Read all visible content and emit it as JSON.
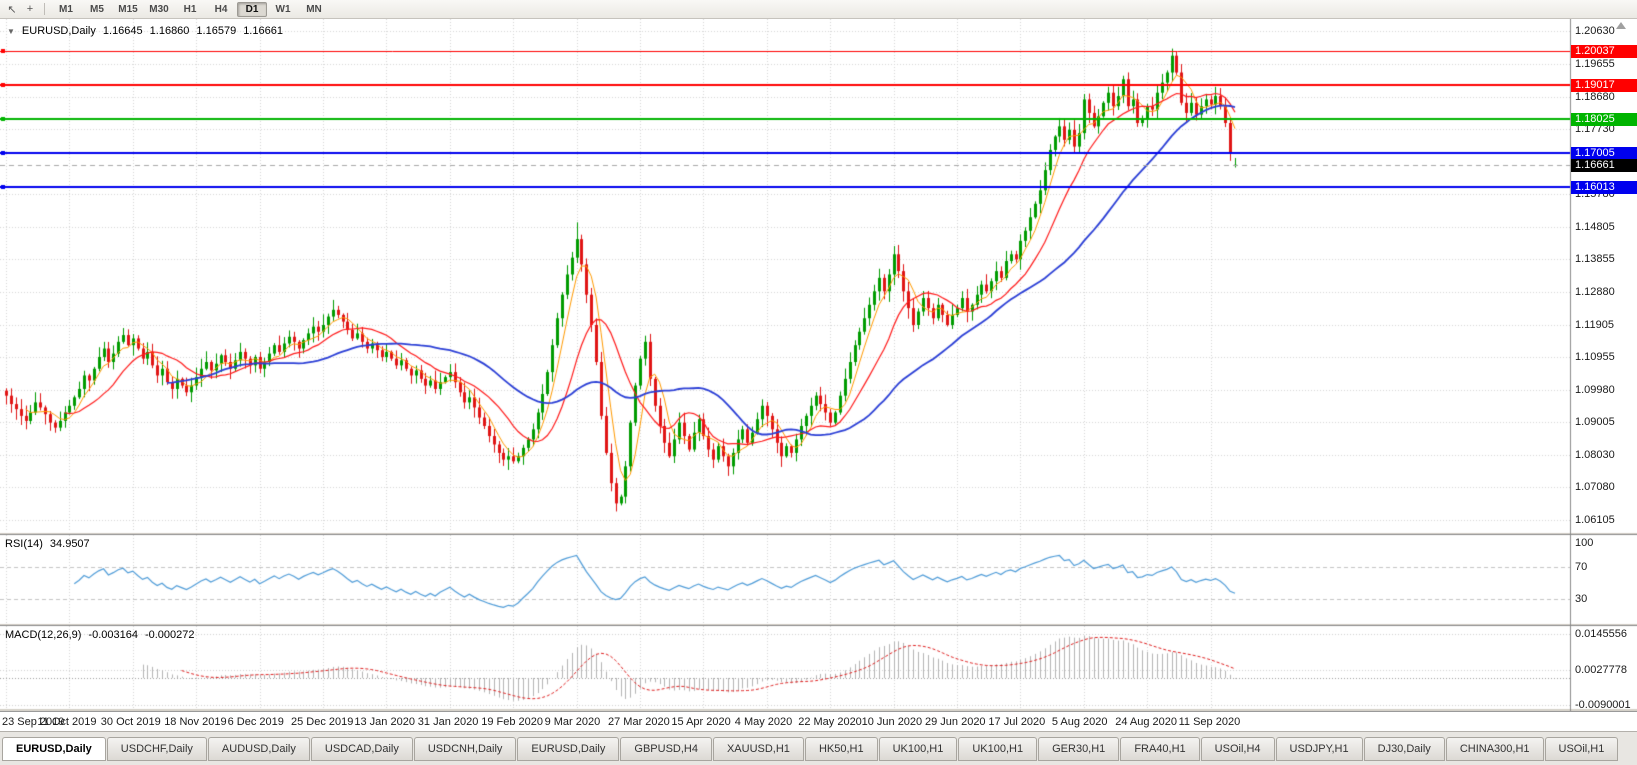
{
  "toolbar": {
    "icons": [
      {
        "name": "cursor",
        "glyph": "↖"
      },
      {
        "name": "crosshair",
        "glyph": "+"
      }
    ],
    "timeframes": [
      "M1",
      "M5",
      "M15",
      "M30",
      "H1",
      "H4",
      "D1",
      "W1",
      "MN"
    ],
    "active_timeframe": "D1"
  },
  "chart_info": {
    "collapse_arrow": "▼",
    "symbol_period": "EURUSD,Daily",
    "open": "1.16645",
    "high": "1.16860",
    "low": "1.16579",
    "close": "1.16661"
  },
  "rsi_panel": {
    "title": "RSI(14)",
    "value": "34.9507",
    "axis_ticks": [
      "100",
      "70",
      "30"
    ],
    "levels": [
      70,
      30
    ],
    "line_color": "#4f9cd8"
  },
  "macd_panel": {
    "title": "MACD(12,26,9)",
    "value_main": "-0.003164",
    "value_signal": "-0.000272",
    "axis_ticks": [
      "0.0145556",
      "0.0027778",
      "-0.0090001"
    ],
    "hist_color": "#b4b4b4",
    "signal_color": "#e02020"
  },
  "price_axis": {
    "ticks": [
      "1.20630",
      "1.19655",
      "1.18680",
      "1.17730",
      "1.15780",
      "1.14805",
      "1.13855",
      "1.12880",
      "1.11905",
      "1.10955",
      "1.09980",
      "1.09005",
      "1.08030",
      "1.07080",
      "1.06105"
    ],
    "current": {
      "label": "1.16661",
      "value": 1.16661,
      "bg": "#000000"
    }
  },
  "hlines": [
    {
      "value": 1.20037,
      "label": "1.20037",
      "color": "#ff0000",
      "width": 1
    },
    {
      "value": 1.19017,
      "label": "1.19017",
      "color": "#ff0000",
      "width": 2
    },
    {
      "value": 1.18025,
      "label": "1.18025",
      "color": "#00b400",
      "width": 2
    },
    {
      "value": 1.17005,
      "label": "1.17005",
      "color": "#0000ee",
      "width": 2
    },
    {
      "value": 1.16013,
      "label": "1.16013",
      "color": "#0000ee",
      "width": 2
    }
  ],
  "chart_data": {
    "type": "candlestick",
    "symbol": "EURUSD",
    "timeframe": "Daily",
    "x_tick_labels": [
      "23 Sep 2019",
      "11 Oct 2019",
      "30 Oct 2019",
      "18 Nov 2019",
      "6 Dec 2019",
      "25 Dec 2019",
      "13 Jan 2020",
      "31 Jan 2020",
      "19 Feb 2020",
      "9 Mar 2020",
      "27 Mar 2020",
      "15 Apr 2020",
      "4 May 2020",
      "22 May 2020",
      "10 Jun 2020",
      "29 Jun 2020",
      "17 Jul 2020",
      "5 Aug 2020",
      "24 Aug 2020",
      "11 Sep 2020"
    ],
    "bars_per_tick": 13,
    "price_range": {
      "top": 1.2099,
      "bottom": 1.0575
    },
    "closes": [
      1.098,
      1.0955,
      1.094,
      1.092,
      1.0905,
      1.093,
      1.096,
      1.0945,
      1.0925,
      1.09,
      1.0885,
      1.0905,
      1.093,
      1.095,
      1.0975,
      1.1,
      1.104,
      1.1025,
      1.106,
      1.1095,
      1.112,
      1.108,
      1.1105,
      1.114,
      1.116,
      1.113,
      1.115,
      1.112,
      1.109,
      1.111,
      1.107,
      1.104,
      1.106,
      1.102,
      1.1,
      1.103,
      1.101,
      1.099,
      1.101,
      1.1035,
      1.106,
      1.108,
      1.1055,
      1.1075,
      1.11,
      1.108,
      1.106,
      1.1085,
      1.111,
      1.109,
      1.107,
      1.1095,
      1.106,
      1.108,
      1.1105,
      1.113,
      1.111,
      1.1135,
      1.1155,
      1.114,
      1.112,
      1.1145,
      1.1165,
      1.1185,
      1.117,
      1.119,
      1.1215,
      1.1235,
      1.122,
      1.12,
      1.1175,
      1.115,
      1.1165,
      1.114,
      1.112,
      1.1135,
      1.1115,
      1.1095,
      1.111,
      1.109,
      1.107,
      1.1085,
      1.106,
      1.104,
      1.1055,
      1.103,
      1.101,
      1.1025,
      1.1,
      1.102,
      1.1035,
      1.105,
      1.102,
      1.099,
      1.096,
      1.0975,
      1.0945,
      1.0915,
      1.089,
      1.086,
      1.0835,
      1.081,
      1.079,
      1.08,
      1.0785,
      1.08,
      1.0825,
      1.085,
      1.088,
      1.093,
      1.0985,
      1.105,
      1.113,
      1.121,
      1.128,
      1.134,
      1.139,
      1.1445,
      1.137,
      1.128,
      1.119,
      1.108,
      1.092,
      1.081,
      1.072,
      1.066,
      1.068,
      1.077,
      1.09,
      1.101,
      1.109,
      1.114,
      1.103,
      1.095,
      1.089,
      1.084,
      1.08,
      1.085,
      1.09,
      1.086,
      1.082,
      1.087,
      1.091,
      1.086,
      1.082,
      1.079,
      1.083,
      1.08,
      1.077,
      1.081,
      1.085,
      1.088,
      1.084,
      1.087,
      1.091,
      1.095,
      1.092,
      1.088,
      1.084,
      1.08,
      1.083,
      1.081,
      1.085,
      1.089,
      1.092,
      1.095,
      1.098,
      1.0955,
      1.093,
      1.09,
      1.093,
      1.098,
      1.103,
      1.108,
      1.113,
      1.117,
      1.121,
      1.125,
      1.129,
      1.133,
      1.129,
      1.134,
      1.14,
      1.135,
      1.129,
      1.124,
      1.119,
      1.123,
      1.127,
      1.124,
      1.121,
      1.125,
      1.122,
      1.119,
      1.122,
      1.124,
      1.127,
      1.123,
      1.125,
      1.128,
      1.131,
      1.129,
      1.132,
      1.135,
      1.133,
      1.138,
      1.14,
      1.1385,
      1.144,
      1.147,
      1.151,
      1.155,
      1.159,
      1.165,
      1.171,
      1.175,
      1.178,
      1.174,
      1.177,
      1.172,
      1.176,
      1.186,
      1.182,
      1.178,
      1.181,
      1.185,
      1.188,
      1.184,
      1.187,
      1.192,
      1.184,
      1.186,
      1.179,
      1.18,
      1.184,
      1.183,
      1.188,
      1.191,
      1.194,
      1.199,
      1.194,
      1.185,
      1.182,
      1.185,
      1.1815,
      1.184,
      1.186,
      1.1845,
      1.187,
      1.184,
      1.179,
      1.17,
      1.1666
    ],
    "spikes": {
      "104": {
        "low": 1.0778
      },
      "117": {
        "high": 1.1495
      },
      "125": {
        "low": 1.0636
      },
      "239": {
        "high": 1.2011
      }
    },
    "last_candle": {
      "open": 1.16645,
      "high": 1.1686,
      "low": 1.16579,
      "close": 1.16661
    },
    "up_color": "#009b00",
    "down_color": "#e01515",
    "grid_color": "#d6d6d6",
    "bid_line": {
      "value": 1.16661,
      "color": "#a8a8a8"
    },
    "moving_averages": [
      {
        "period": 5,
        "color": "#ff9a00",
        "width": 1
      },
      {
        "period": 13,
        "color": "#ff1a1a",
        "width": 1.2
      },
      {
        "period": 34,
        "color": "#2b3fd6",
        "width": 1.8
      }
    ]
  },
  "tabs": {
    "items": [
      "EURUSD,Daily",
      "USDCHF,Daily",
      "AUDUSD,Daily",
      "USDCAD,Daily",
      "USDCNH,Daily",
      "EURUSD,Daily",
      "GBPUSD,H4",
      "XAUUSD,H1",
      "HK50,H1",
      "UK100,H1",
      "UK100,H1",
      "GER30,H1",
      "FRA40,H1",
      "USOil,H4",
      "USDJPY,H1",
      "DJ30,Daily",
      "CHINA300,H1",
      "USOil,H1"
    ],
    "active_index": 0
  }
}
